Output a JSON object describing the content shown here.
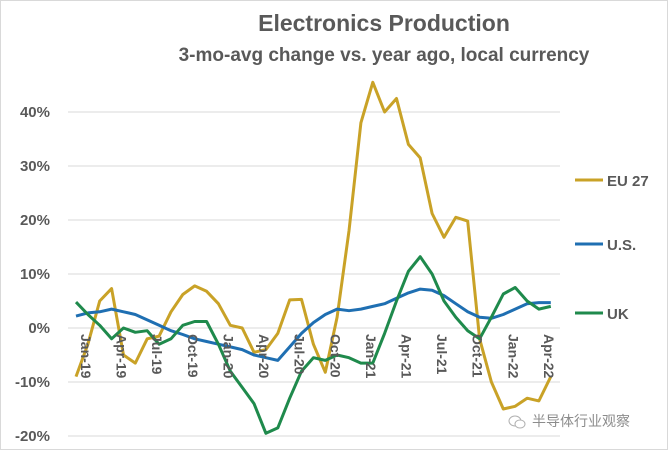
{
  "chart_data": {
    "type": "line",
    "title": "Electronics Production",
    "subtitle": "3-mo-avg change vs. year ago, local currency",
    "xlabel": "",
    "ylabel": "",
    "ylim": [
      -0.2,
      0.4
    ],
    "yticks": [
      0.4,
      0.3,
      0.2,
      0.1,
      0.0,
      -0.1,
      -0.2
    ],
    "ytick_labels": [
      "40%",
      "30%",
      "20%",
      "10%",
      "0%",
      "-10%",
      "-20%"
    ],
    "grid": true,
    "legend_position": "right",
    "x_start": "Jan-19",
    "x_tick_labels": [
      "Jan-19",
      "Apr-19",
      "Jul-19",
      "Oct-19",
      "Jan-20",
      "Apr-20",
      "Jul-20",
      "Oct-20",
      "Jan-21",
      "Apr-21",
      "Jul-21",
      "Oct-21",
      "Jan-22",
      "Apr-22"
    ],
    "x_tick_interval_months": 3,
    "x": [
      "Jan-19",
      "Feb-19",
      "Mar-19",
      "Apr-19",
      "May-19",
      "Jun-19",
      "Jul-19",
      "Aug-19",
      "Sep-19",
      "Oct-19",
      "Nov-19",
      "Dec-19",
      "Jan-20",
      "Feb-20",
      "Mar-20",
      "Apr-20",
      "May-20",
      "Jun-20",
      "Jul-20",
      "Aug-20",
      "Sep-20",
      "Oct-20",
      "Nov-20",
      "Dec-20",
      "Jan-21",
      "Feb-21",
      "Mar-21",
      "Apr-21",
      "May-21",
      "Jun-21",
      "Jul-21",
      "Aug-21",
      "Sep-21",
      "Oct-21",
      "Nov-21",
      "Dec-21",
      "Jan-22",
      "Feb-22",
      "Mar-22",
      "Apr-22",
      "May-22"
    ],
    "series": [
      {
        "name": "EU 27",
        "color": "#c9a227",
        "values": [
          -0.09,
          -0.03,
          0.05,
          0.073,
          -0.05,
          -0.065,
          -0.02,
          -0.015,
          0.03,
          0.062,
          0.078,
          0.068,
          0.045,
          0.005,
          0.0,
          -0.045,
          -0.04,
          -0.01,
          0.052,
          0.053,
          -0.03,
          -0.082,
          0.02,
          0.18,
          0.38,
          0.455,
          0.4,
          0.425,
          0.34,
          0.315,
          0.212,
          0.168,
          0.205,
          0.198,
          -0.02,
          -0.1,
          -0.15,
          -0.145,
          -0.13,
          -0.135,
          -0.09
        ]
      },
      {
        "name": "U.S.",
        "color": "#1f6fb2",
        "values": [
          0.022,
          0.028,
          0.03,
          0.035,
          0.03,
          0.025,
          0.015,
          0.005,
          -0.005,
          -0.012,
          -0.02,
          -0.025,
          -0.03,
          -0.035,
          -0.04,
          -0.05,
          -0.055,
          -0.06,
          -0.035,
          -0.01,
          0.01,
          0.025,
          0.035,
          0.032,
          0.035,
          0.04,
          0.045,
          0.055,
          0.065,
          0.072,
          0.07,
          0.06,
          0.045,
          0.03,
          0.02,
          0.018,
          0.025,
          0.035,
          0.045,
          0.047,
          0.047
        ]
      },
      {
        "name": "UK",
        "color": "#1f8a4c",
        "values": [
          0.048,
          0.025,
          0.005,
          -0.02,
          0.0,
          -0.008,
          -0.005,
          -0.03,
          -0.02,
          0.005,
          0.012,
          0.012,
          -0.03,
          -0.08,
          -0.11,
          -0.14,
          -0.195,
          -0.185,
          -0.13,
          -0.08,
          -0.055,
          -0.06,
          -0.05,
          -0.055,
          -0.065,
          -0.065,
          -0.01,
          0.05,
          0.105,
          0.132,
          0.1,
          0.05,
          0.02,
          -0.005,
          -0.02,
          0.02,
          0.063,
          0.075,
          0.05,
          0.035,
          0.04
        ]
      }
    ]
  },
  "watermark": {
    "icon": "wechat-icon",
    "text": "半导体行业观察"
  }
}
